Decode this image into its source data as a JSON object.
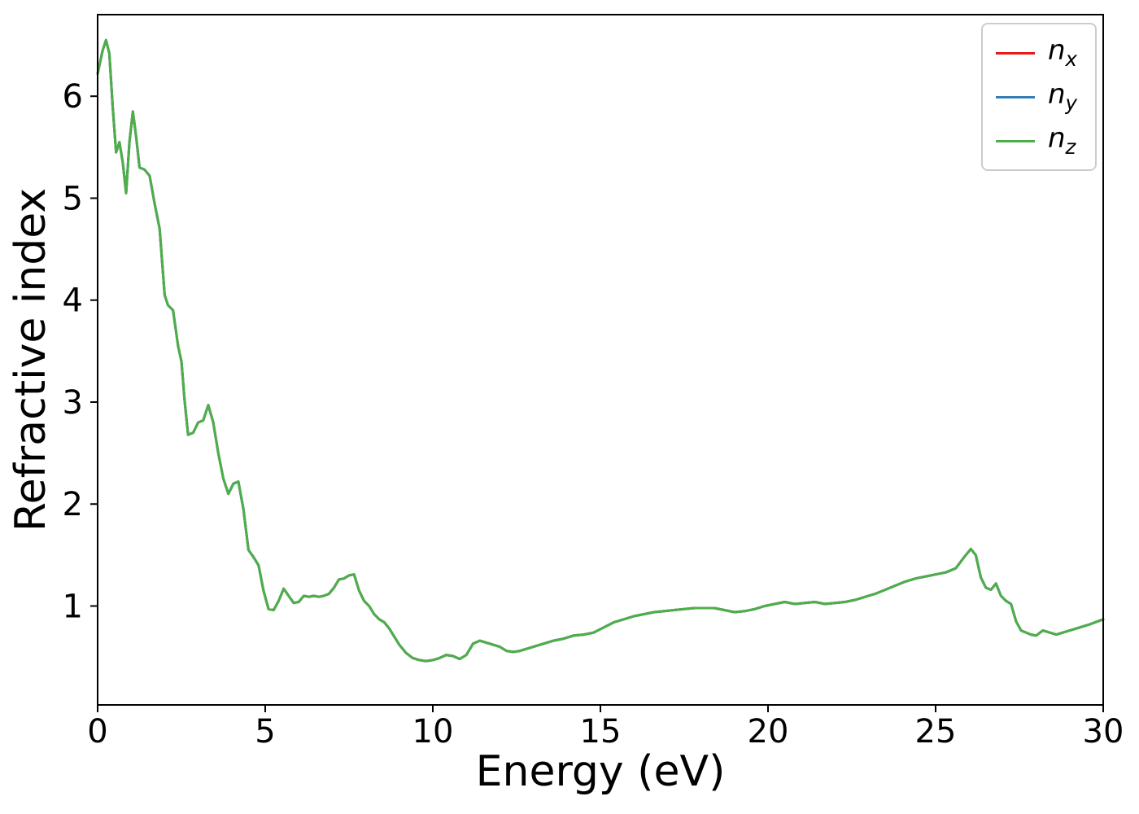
{
  "figure": {
    "background": "#ffffff",
    "spine_color": "#000000"
  },
  "chart_data": {
    "type": "line",
    "title": "",
    "xlabel": "Energy (eV)",
    "ylabel": "Refractive index",
    "xlim": [
      0,
      30
    ],
    "ylim": [
      0.03,
      6.8
    ],
    "x_ticks": [
      0,
      5,
      10,
      15,
      20,
      25,
      30
    ],
    "y_ticks": [
      1,
      2,
      3,
      4,
      5,
      6
    ],
    "grid": false,
    "legend_position": "upper right",
    "series_overlap_note": "nx, ny and nz curves coincide exactly; only the green nz curve (drawn last) is visible in the plot area.",
    "x": [
      0,
      0.15,
      0.25,
      0.35,
      0.45,
      0.55,
      0.65,
      0.75,
      0.85,
      0.95,
      1.05,
      1.15,
      1.25,
      1.4,
      1.55,
      1.7,
      1.85,
      2.0,
      2.1,
      2.25,
      2.4,
      2.5,
      2.6,
      2.7,
      2.85,
      3.0,
      3.15,
      3.3,
      3.45,
      3.6,
      3.75,
      3.9,
      4.05,
      4.2,
      4.35,
      4.5,
      4.65,
      4.8,
      4.95,
      5.1,
      5.25,
      5.4,
      5.55,
      5.7,
      5.85,
      6.0,
      6.15,
      6.3,
      6.45,
      6.6,
      6.75,
      6.9,
      7.05,
      7.2,
      7.35,
      7.5,
      7.65,
      7.8,
      7.95,
      8.1,
      8.25,
      8.4,
      8.55,
      8.7,
      8.85,
      9.0,
      9.2,
      9.4,
      9.6,
      9.8,
      10.0,
      10.2,
      10.4,
      10.6,
      10.8,
      11.0,
      11.2,
      11.4,
      11.6,
      11.8,
      12.0,
      12.2,
      12.4,
      12.6,
      12.8,
      13.0,
      13.3,
      13.6,
      13.9,
      14.2,
      14.5,
      14.8,
      15.1,
      15.4,
      15.7,
      16.0,
      16.3,
      16.6,
      16.9,
      17.2,
      17.5,
      17.8,
      18.1,
      18.4,
      18.7,
      19.0,
      19.3,
      19.6,
      19.9,
      20.2,
      20.5,
      20.8,
      21.1,
      21.4,
      21.7,
      22.0,
      22.3,
      22.6,
      22.9,
      23.2,
      23.5,
      23.8,
      24.1,
      24.4,
      24.7,
      25.0,
      25.3,
      25.6,
      25.9,
      26.05,
      26.2,
      26.35,
      26.5,
      26.65,
      26.8,
      26.95,
      27.1,
      27.25,
      27.4,
      27.55,
      27.7,
      27.85,
      28.0,
      28.2,
      28.4,
      28.6,
      28.8,
      29.0,
      29.3,
      29.6,
      30.0
    ],
    "y_shared": [
      6.22,
      6.45,
      6.55,
      6.42,
      5.9,
      5.45,
      5.55,
      5.35,
      5.05,
      5.55,
      5.85,
      5.6,
      5.3,
      5.28,
      5.22,
      4.95,
      4.7,
      4.05,
      3.95,
      3.9,
      3.55,
      3.4,
      3.0,
      2.68,
      2.7,
      2.8,
      2.82,
      2.97,
      2.8,
      2.5,
      2.25,
      2.1,
      2.2,
      2.22,
      1.95,
      1.55,
      1.48,
      1.4,
      1.15,
      0.97,
      0.96,
      1.05,
      1.17,
      1.1,
      1.03,
      1.04,
      1.1,
      1.09,
      1.1,
      1.09,
      1.1,
      1.12,
      1.18,
      1.26,
      1.27,
      1.3,
      1.31,
      1.15,
      1.05,
      1.0,
      0.92,
      0.87,
      0.84,
      0.78,
      0.7,
      0.62,
      0.54,
      0.49,
      0.47,
      0.46,
      0.47,
      0.49,
      0.52,
      0.51,
      0.48,
      0.52,
      0.63,
      0.66,
      0.64,
      0.62,
      0.6,
      0.56,
      0.55,
      0.56,
      0.58,
      0.6,
      0.63,
      0.66,
      0.68,
      0.71,
      0.72,
      0.74,
      0.79,
      0.84,
      0.87,
      0.9,
      0.92,
      0.94,
      0.95,
      0.96,
      0.97,
      0.98,
      0.98,
      0.98,
      0.96,
      0.94,
      0.95,
      0.97,
      1.0,
      1.02,
      1.04,
      1.02,
      1.03,
      1.04,
      1.02,
      1.03,
      1.04,
      1.06,
      1.09,
      1.12,
      1.16,
      1.2,
      1.24,
      1.27,
      1.29,
      1.31,
      1.33,
      1.37,
      1.5,
      1.56,
      1.5,
      1.28,
      1.18,
      1.16,
      1.22,
      1.1,
      1.05,
      1.02,
      0.85,
      0.76,
      0.74,
      0.72,
      0.71,
      0.76,
      0.74,
      0.72,
      0.74,
      0.76,
      0.79,
      0.82,
      0.87
    ],
    "series": [
      {
        "name": "n_x",
        "label_base": "n",
        "label_sub": "x",
        "color": "#e41a1c"
      },
      {
        "name": "n_y",
        "label_base": "n",
        "label_sub": "y",
        "color": "#377eb8"
      },
      {
        "name": "n_z",
        "label_base": "n",
        "label_sub": "z",
        "color": "#4daf4a"
      }
    ]
  }
}
